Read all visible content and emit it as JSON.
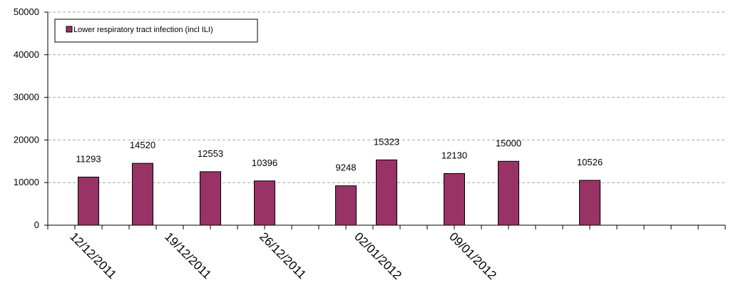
{
  "chart_data": {
    "type": "bar",
    "series": [
      {
        "name": "Lower respiratory tract infection (incl ILI)",
        "color": "#993366",
        "points": [
          {
            "x": "14/12/2011",
            "value": 11293
          },
          {
            "x": "18/12/2011",
            "value": 14520
          },
          {
            "x": "23/12/2011",
            "value": 12553
          },
          {
            "x": "27/12/2011",
            "value": 10396
          },
          {
            "x": "02/01/2012",
            "value": 9248
          },
          {
            "x": "05/01/2012",
            "value": 15323
          },
          {
            "x": "10/01/2012",
            "value": 12130
          },
          {
            "x": "14/01/2012",
            "value": 15000
          },
          {
            "x": "20/01/2012",
            "value": 10526
          }
        ]
      }
    ],
    "x_axis": {
      "type": "date",
      "range": [
        "11/12/2011",
        "30/01/2012"
      ],
      "tick_labels": [
        "12/12/2011",
        "19/12/2011",
        "26/12/2011",
        "02/01/2012",
        "09/01/2012"
      ]
    },
    "y_axis": {
      "ylim": [
        0,
        50000
      ],
      "tick_labels": [
        "0",
        "10000",
        "20000",
        "30000",
        "40000",
        "50000"
      ]
    },
    "grid": "horizontal dashed",
    "legend_position": "top-left",
    "title": "",
    "xlabel": "",
    "ylabel": ""
  }
}
